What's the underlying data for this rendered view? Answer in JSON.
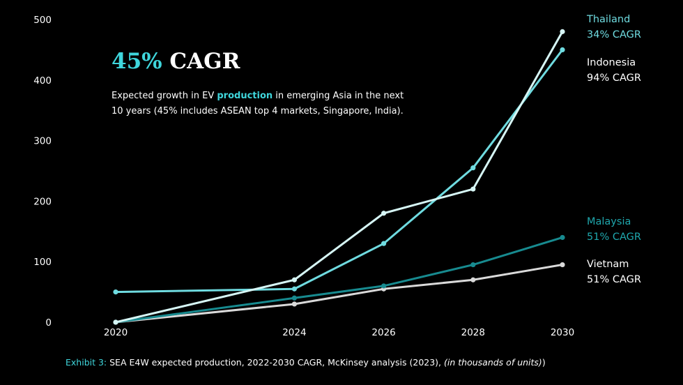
{
  "headline": {
    "pct": "45%",
    "rest": "CAGR"
  },
  "subtitle": {
    "part1": "Expected growth in EV ",
    "highlight": "production",
    "part2": " in emerging Asia in the next 10 years (45% includes ASEAN top 4 markets, Singapore, India)."
  },
  "caption": {
    "label": "Exhibit 3:",
    "text": "SEA E4W expected production, 2022-2030 CAGR, McKinsey analysis (2023),",
    "italic": "(in thousands of units)",
    "close": ")"
  },
  "colors": {
    "thailand": "#d6f6f5",
    "indonesia": "#6fdbe0",
    "malaysia": "#178a8f",
    "vietnam": "#d9d9d9",
    "thailand_label": "#6fdbe0",
    "indonesia_label": "#ffffff",
    "malaysia_label": "#1fa7ad",
    "vietnam_label": "#ffffff",
    "accent": "#3fd6dc"
  },
  "chart_data": {
    "type": "line",
    "title": "45% CAGR",
    "xlabel": "",
    "ylabel": "",
    "categories": [
      "2020",
      "2024",
      "2026",
      "2028",
      "2030"
    ],
    "ylim": [
      0,
      500
    ],
    "yticks": [
      0,
      100,
      200,
      300,
      400,
      500
    ],
    "grid": false,
    "series": [
      {
        "key": "thailand",
        "name": "Thailand",
        "cagr": "34% CAGR",
        "values": [
          0,
          70,
          180,
          220,
          480
        ]
      },
      {
        "key": "indonesia",
        "name": "Indonesia",
        "cagr": "94% CAGR",
        "values": [
          50,
          55,
          130,
          255,
          450
        ]
      },
      {
        "key": "malaysia",
        "name": "Malaysia",
        "cagr": "51% CAGR",
        "values": [
          0,
          40,
          60,
          95,
          140
        ]
      },
      {
        "key": "vietnam",
        "name": "Vietnam",
        "cagr": "51% CAGR",
        "values": [
          0,
          30,
          55,
          70,
          95
        ]
      }
    ]
  }
}
